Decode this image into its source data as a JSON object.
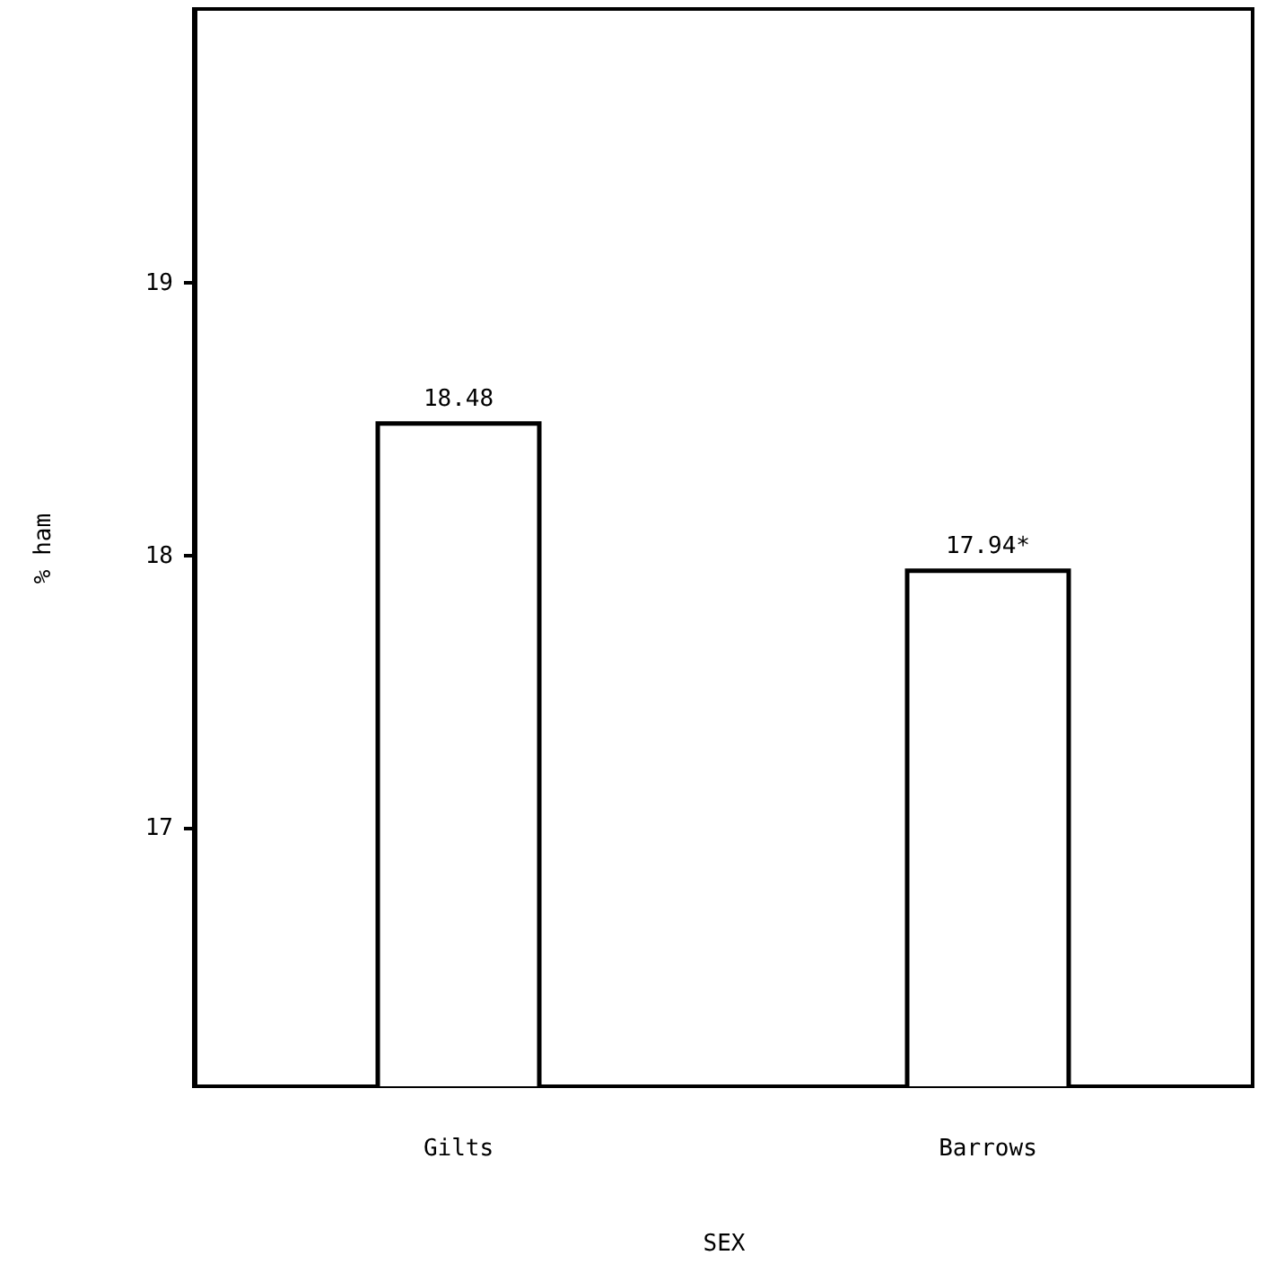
{
  "chart_data": {
    "type": "bar",
    "xlabel": "SEX",
    "ylabel": "% ham",
    "categories": [
      "Gilts",
      "Barrows"
    ],
    "values": [
      18.48,
      17.94
    ],
    "value_labels": [
      "18.48",
      "17.94*"
    ],
    "color": "#ffffff",
    "ylim": [
      16.05,
      20
    ],
    "yticks": [
      17,
      18,
      19
    ],
    "grid": false
  }
}
